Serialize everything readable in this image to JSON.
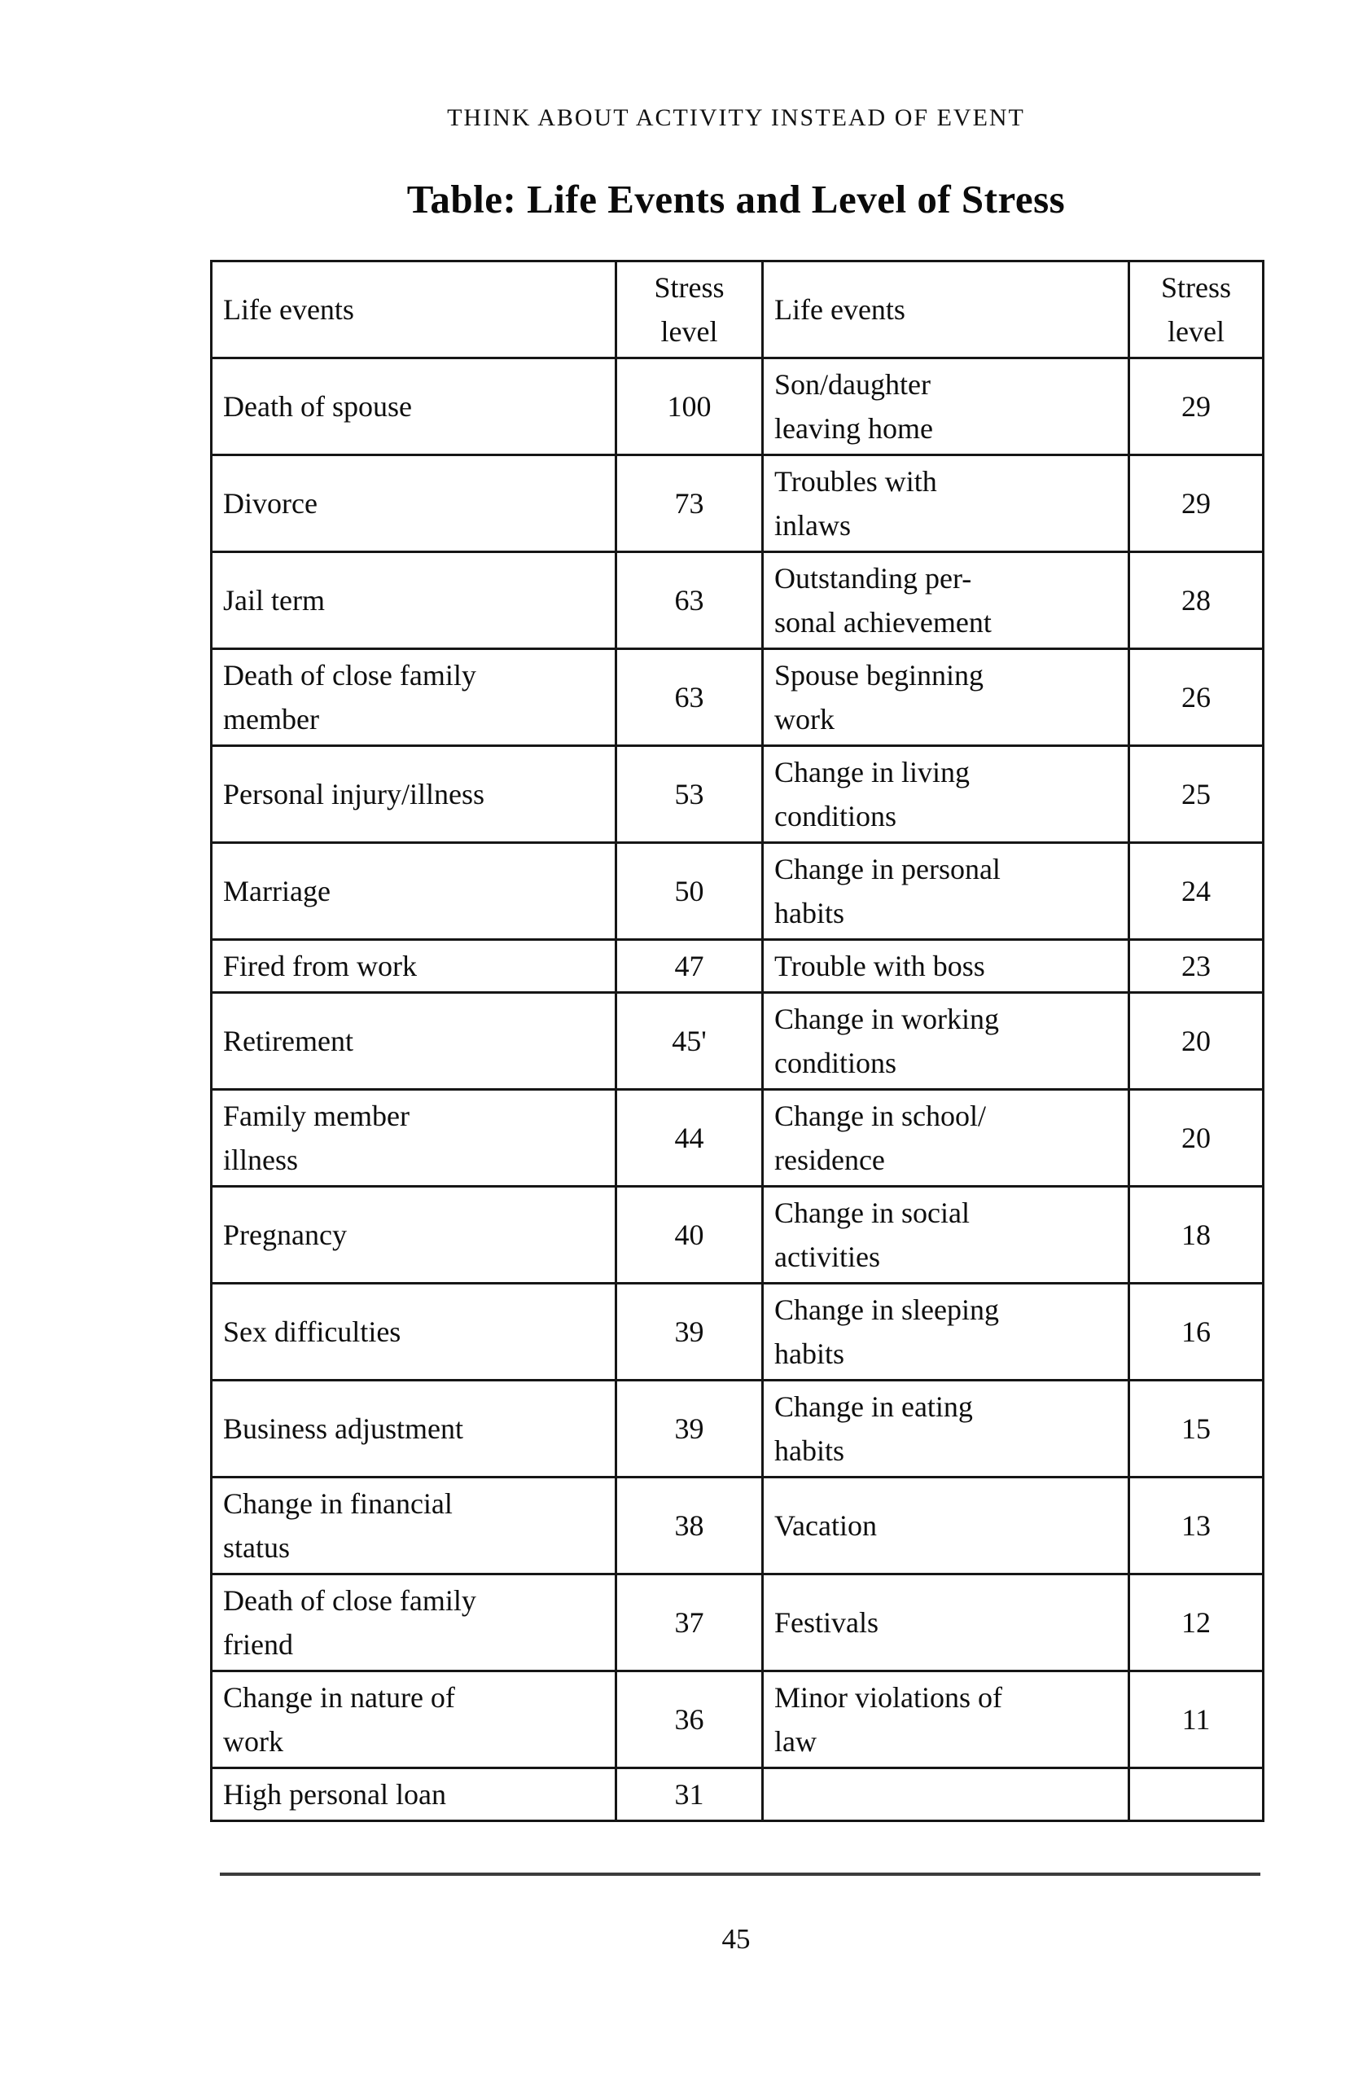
{
  "page": {
    "running_header": "THINK ABOUT ACTIVITY INSTEAD OF EVENT",
    "title": "Table: Life Events and Level of Stress",
    "page_number": "45"
  },
  "table": {
    "columns": [
      "Life events",
      "Stress\nlevel",
      "Life events",
      "Stress\nlevel"
    ],
    "rows": [
      [
        "Death of spouse",
        "100",
        "Son/daughter\nleaving home",
        "29"
      ],
      [
        "Divorce",
        "73",
        "Troubles with\ninlaws",
        "29"
      ],
      [
        "Jail term",
        "63",
        "Outstanding per-\nsonal achievement",
        "28"
      ],
      [
        "Death of close family\nmember",
        "63",
        "Spouse beginning\nwork",
        "26"
      ],
      [
        "Personal injury/illness",
        "53",
        "Change in living\nconditions",
        "25"
      ],
      [
        "Marriage",
        "50",
        "Change in personal\nhabits",
        "24"
      ],
      [
        "Fired from work",
        "47",
        "Trouble with boss",
        "23"
      ],
      [
        "Retirement",
        "45'",
        "Change in working\nconditions",
        "20"
      ],
      [
        "Family member\nillness",
        "44",
        "Change in school/\nresidence",
        "20"
      ],
      [
        "Pregnancy",
        "40",
        "Change in social\nactivities",
        "18"
      ],
      [
        "Sex difficulties",
        "39",
        "Change in sleeping\nhabits",
        "16"
      ],
      [
        "Business adjustment",
        "39",
        "Change in eating\nhabits",
        "15"
      ],
      [
        "Change in financial\nstatus",
        "38",
        "Vacation",
        "13"
      ],
      [
        "Death of close family\nfriend",
        "37",
        "Festivals",
        "12"
      ],
      [
        "Change in nature of\nwork",
        "36",
        "Minor violations of\nlaw",
        "11"
      ],
      [
        "High personal loan",
        "31",
        "",
        ""
      ]
    ]
  }
}
